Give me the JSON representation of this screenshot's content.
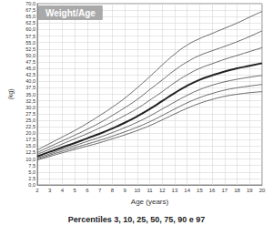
{
  "chart_data": {
    "type": "line",
    "title": "Weight/Age",
    "subtitle": "Percentiles 3, 10, 25, 50, 75, 90 e 97",
    "xlabel": "Age (years)",
    "ylabel": "(kg)",
    "x": [
      2,
      3,
      4,
      5,
      6,
      7,
      8,
      9,
      10,
      11,
      12,
      13,
      14,
      15,
      16,
      17,
      18,
      19,
      20
    ],
    "series": [
      {
        "color": "#555555",
        "line_style": "solid",
        "values": [
          13.5,
          16,
          18.5,
          21,
          23.8,
          26.8,
          30,
          33.5,
          37.5,
          41.8,
          46.3,
          50.5,
          54,
          56.5,
          58.5,
          60.5,
          62.5,
          64.8,
          67
        ]
      },
      {
        "color": "#555555",
        "line_style": "solid",
        "values": [
          12.5,
          14.8,
          17,
          19.2,
          21.5,
          24,
          26.8,
          29.8,
          33,
          36.8,
          40.5,
          44.3,
          47.5,
          50,
          51.8,
          53.5,
          55.3,
          57.3,
          59.5
        ]
      },
      {
        "color": "#555555",
        "line_style": "solid",
        "values": [
          11.8,
          13.8,
          15.8,
          17.8,
          19.8,
          22,
          24.3,
          26.8,
          29.5,
          32.7,
          36,
          39.5,
          42.5,
          45,
          46.8,
          48.5,
          50,
          51.5,
          53
        ]
      },
      {
        "color": "#222222",
        "line_style": "thick",
        "values": [
          11,
          12.8,
          14.5,
          16.2,
          18,
          19.8,
          21.8,
          24,
          26.5,
          29.3,
          32.4,
          35.5,
          38.3,
          40.6,
          42.3,
          43.8,
          45,
          46,
          47
        ]
      },
      {
        "color": "#555555",
        "line_style": "solid",
        "values": [
          10.4,
          12,
          13.7,
          15.2,
          16.8,
          18.4,
          20.2,
          22.1,
          24.2,
          26.6,
          29.3,
          32,
          34.6,
          36.8,
          38.5,
          39.8,
          40.8,
          41.6,
          42.3
        ]
      },
      {
        "color": "#555555",
        "line_style": "solid",
        "values": [
          10,
          11.5,
          13,
          14.4,
          15.8,
          17.2,
          18.8,
          20.5,
          22.3,
          24.4,
          26.8,
          29.3,
          31.7,
          33.7,
          35.3,
          36.6,
          37.5,
          38.2,
          38.8
        ]
      },
      {
        "color": "#555555",
        "line_style": "solid",
        "values": [
          9.6,
          11,
          12.4,
          13.7,
          15,
          16.3,
          17.8,
          19.3,
          21,
          22.9,
          25.1,
          27.4,
          29.6,
          31.5,
          33,
          34.2,
          35,
          35.6,
          36
        ]
      }
    ],
    "xlim": [
      2,
      20
    ],
    "xticks": [
      2,
      3,
      4,
      5,
      6,
      7,
      8,
      9,
      10,
      11,
      12,
      13,
      14,
      15,
      16,
      17,
      18,
      19,
      20
    ],
    "ylim": [
      0,
      70
    ],
    "yticks": [
      {
        "value": 0,
        "label": "0,0"
      },
      {
        "value": 2.5,
        "label": "2,5"
      },
      {
        "value": 5,
        "label": "5,0"
      },
      {
        "value": 7.5,
        "label": "7,5"
      },
      {
        "value": 10,
        "label": "10,0"
      },
      {
        "value": 12.5,
        "label": "12,5"
      },
      {
        "value": 15,
        "label": "15,0"
      },
      {
        "value": 17.5,
        "label": "17,5"
      },
      {
        "value": 20,
        "label": "20,0"
      },
      {
        "value": 22.5,
        "label": "22,5"
      },
      {
        "value": 25,
        "label": "25,0"
      },
      {
        "value": 27.5,
        "label": "27,5"
      },
      {
        "value": 30,
        "label": "30,0"
      },
      {
        "value": 32.5,
        "label": "32,5"
      },
      {
        "value": 35,
        "label": "35,0"
      },
      {
        "value": 37.5,
        "label": "37,5"
      },
      {
        "value": 40,
        "label": "40,0"
      },
      {
        "value": 42.5,
        "label": "42,5"
      },
      {
        "value": 45,
        "label": "45,0"
      },
      {
        "value": 47.5,
        "label": "47,5"
      },
      {
        "value": 50,
        "label": "50,0"
      },
      {
        "value": 52.5,
        "label": "52,5"
      },
      {
        "value": 55,
        "label": "55,0"
      },
      {
        "value": 57.5,
        "label": "57,5"
      },
      {
        "value": 60,
        "label": "60,0"
      },
      {
        "value": 62.5,
        "label": "62,5"
      },
      {
        "value": 65,
        "label": "65,0"
      },
      {
        "value": 67.5,
        "label": "67,5"
      },
      {
        "value": 70,
        "label": "70,0"
      }
    ],
    "grid": true
  }
}
